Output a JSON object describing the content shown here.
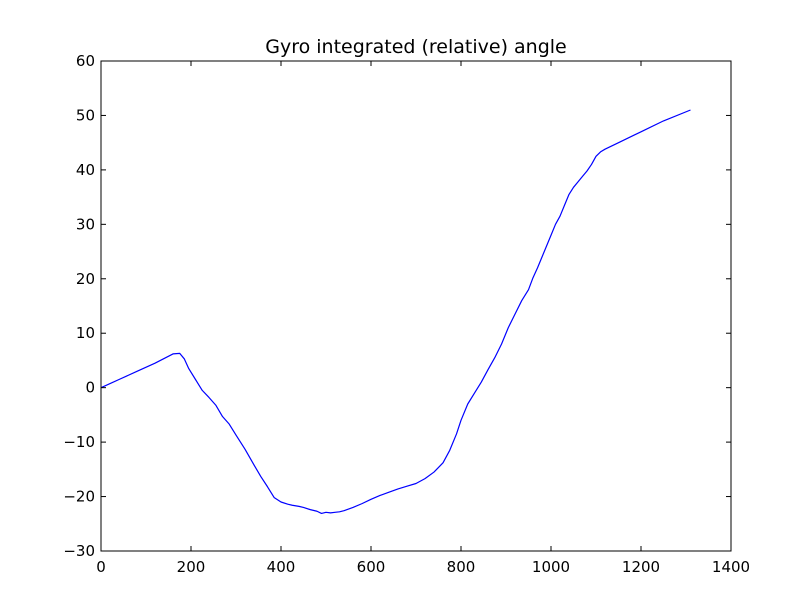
{
  "chart_data": {
    "type": "line",
    "title": "Gyro integrated (relative) angle",
    "xlabel": "",
    "ylabel": "",
    "xlim": [
      0,
      1400
    ],
    "ylim": [
      -30,
      60
    ],
    "x_ticks": [
      0,
      200,
      400,
      600,
      800,
      1000,
      1200,
      1400
    ],
    "x_tick_labels": [
      "0",
      "200",
      "400",
      "600",
      "800",
      "1000",
      "1200",
      "1400"
    ],
    "y_ticks": [
      -30,
      -20,
      -10,
      0,
      10,
      20,
      30,
      40,
      50,
      60
    ],
    "y_tick_labels": [
      "−30",
      "−20",
      "−10",
      "0",
      "10",
      "20",
      "30",
      "40",
      "50",
      "60"
    ],
    "grid": false,
    "legend": "none",
    "line_color": "#0000ff",
    "series": [
      {
        "x": [
          0,
          40,
          80,
          120,
          160,
          175,
          185,
          195,
          210,
          225,
          240,
          255,
          270,
          285,
          300,
          320,
          340,
          355,
          370,
          385,
          400,
          415,
          425,
          440,
          450,
          465,
          480,
          490,
          500,
          510,
          520,
          530,
          540,
          560,
          580,
          600,
          620,
          640,
          660,
          680,
          700,
          720,
          740,
          760,
          775,
          790,
          800,
          815,
          830,
          845,
          860,
          875,
          890,
          905,
          920,
          935,
          950,
          960,
          970,
          980,
          990,
          1000,
          1010,
          1020,
          1030,
          1040,
          1050,
          1060,
          1070,
          1080,
          1090,
          1100,
          1110,
          1120,
          1150,
          1200,
          1250,
          1310
        ],
        "y": [
          0,
          1.5,
          3,
          4.5,
          6.2,
          6.3,
          5.3,
          3.5,
          1.5,
          -0.5,
          -1.8,
          -3.2,
          -5.3,
          -6.7,
          -8.7,
          -11.3,
          -14.2,
          -16.3,
          -18.2,
          -20.2,
          -21.0,
          -21.4,
          -21.6,
          -21.8,
          -22.0,
          -22.4,
          -22.7,
          -23.1,
          -22.9,
          -23.0,
          -22.9,
          -22.8,
          -22.6,
          -22.0,
          -21.3,
          -20.5,
          -19.8,
          -19.2,
          -18.6,
          -18.1,
          -17.6,
          -16.7,
          -15.5,
          -13.8,
          -11.5,
          -8.5,
          -6.0,
          -3.0,
          -1.0,
          1.0,
          3.3,
          5.5,
          8.0,
          11.0,
          13.5,
          16.0,
          18.0,
          20.2,
          22.0,
          24.0,
          26.0,
          28.0,
          30.0,
          31.5,
          33.5,
          35.5,
          36.8,
          37.8,
          38.8,
          39.8,
          41.0,
          42.5,
          43.3,
          43.8,
          45.0,
          47.0,
          49.0,
          51.0
        ]
      }
    ]
  }
}
